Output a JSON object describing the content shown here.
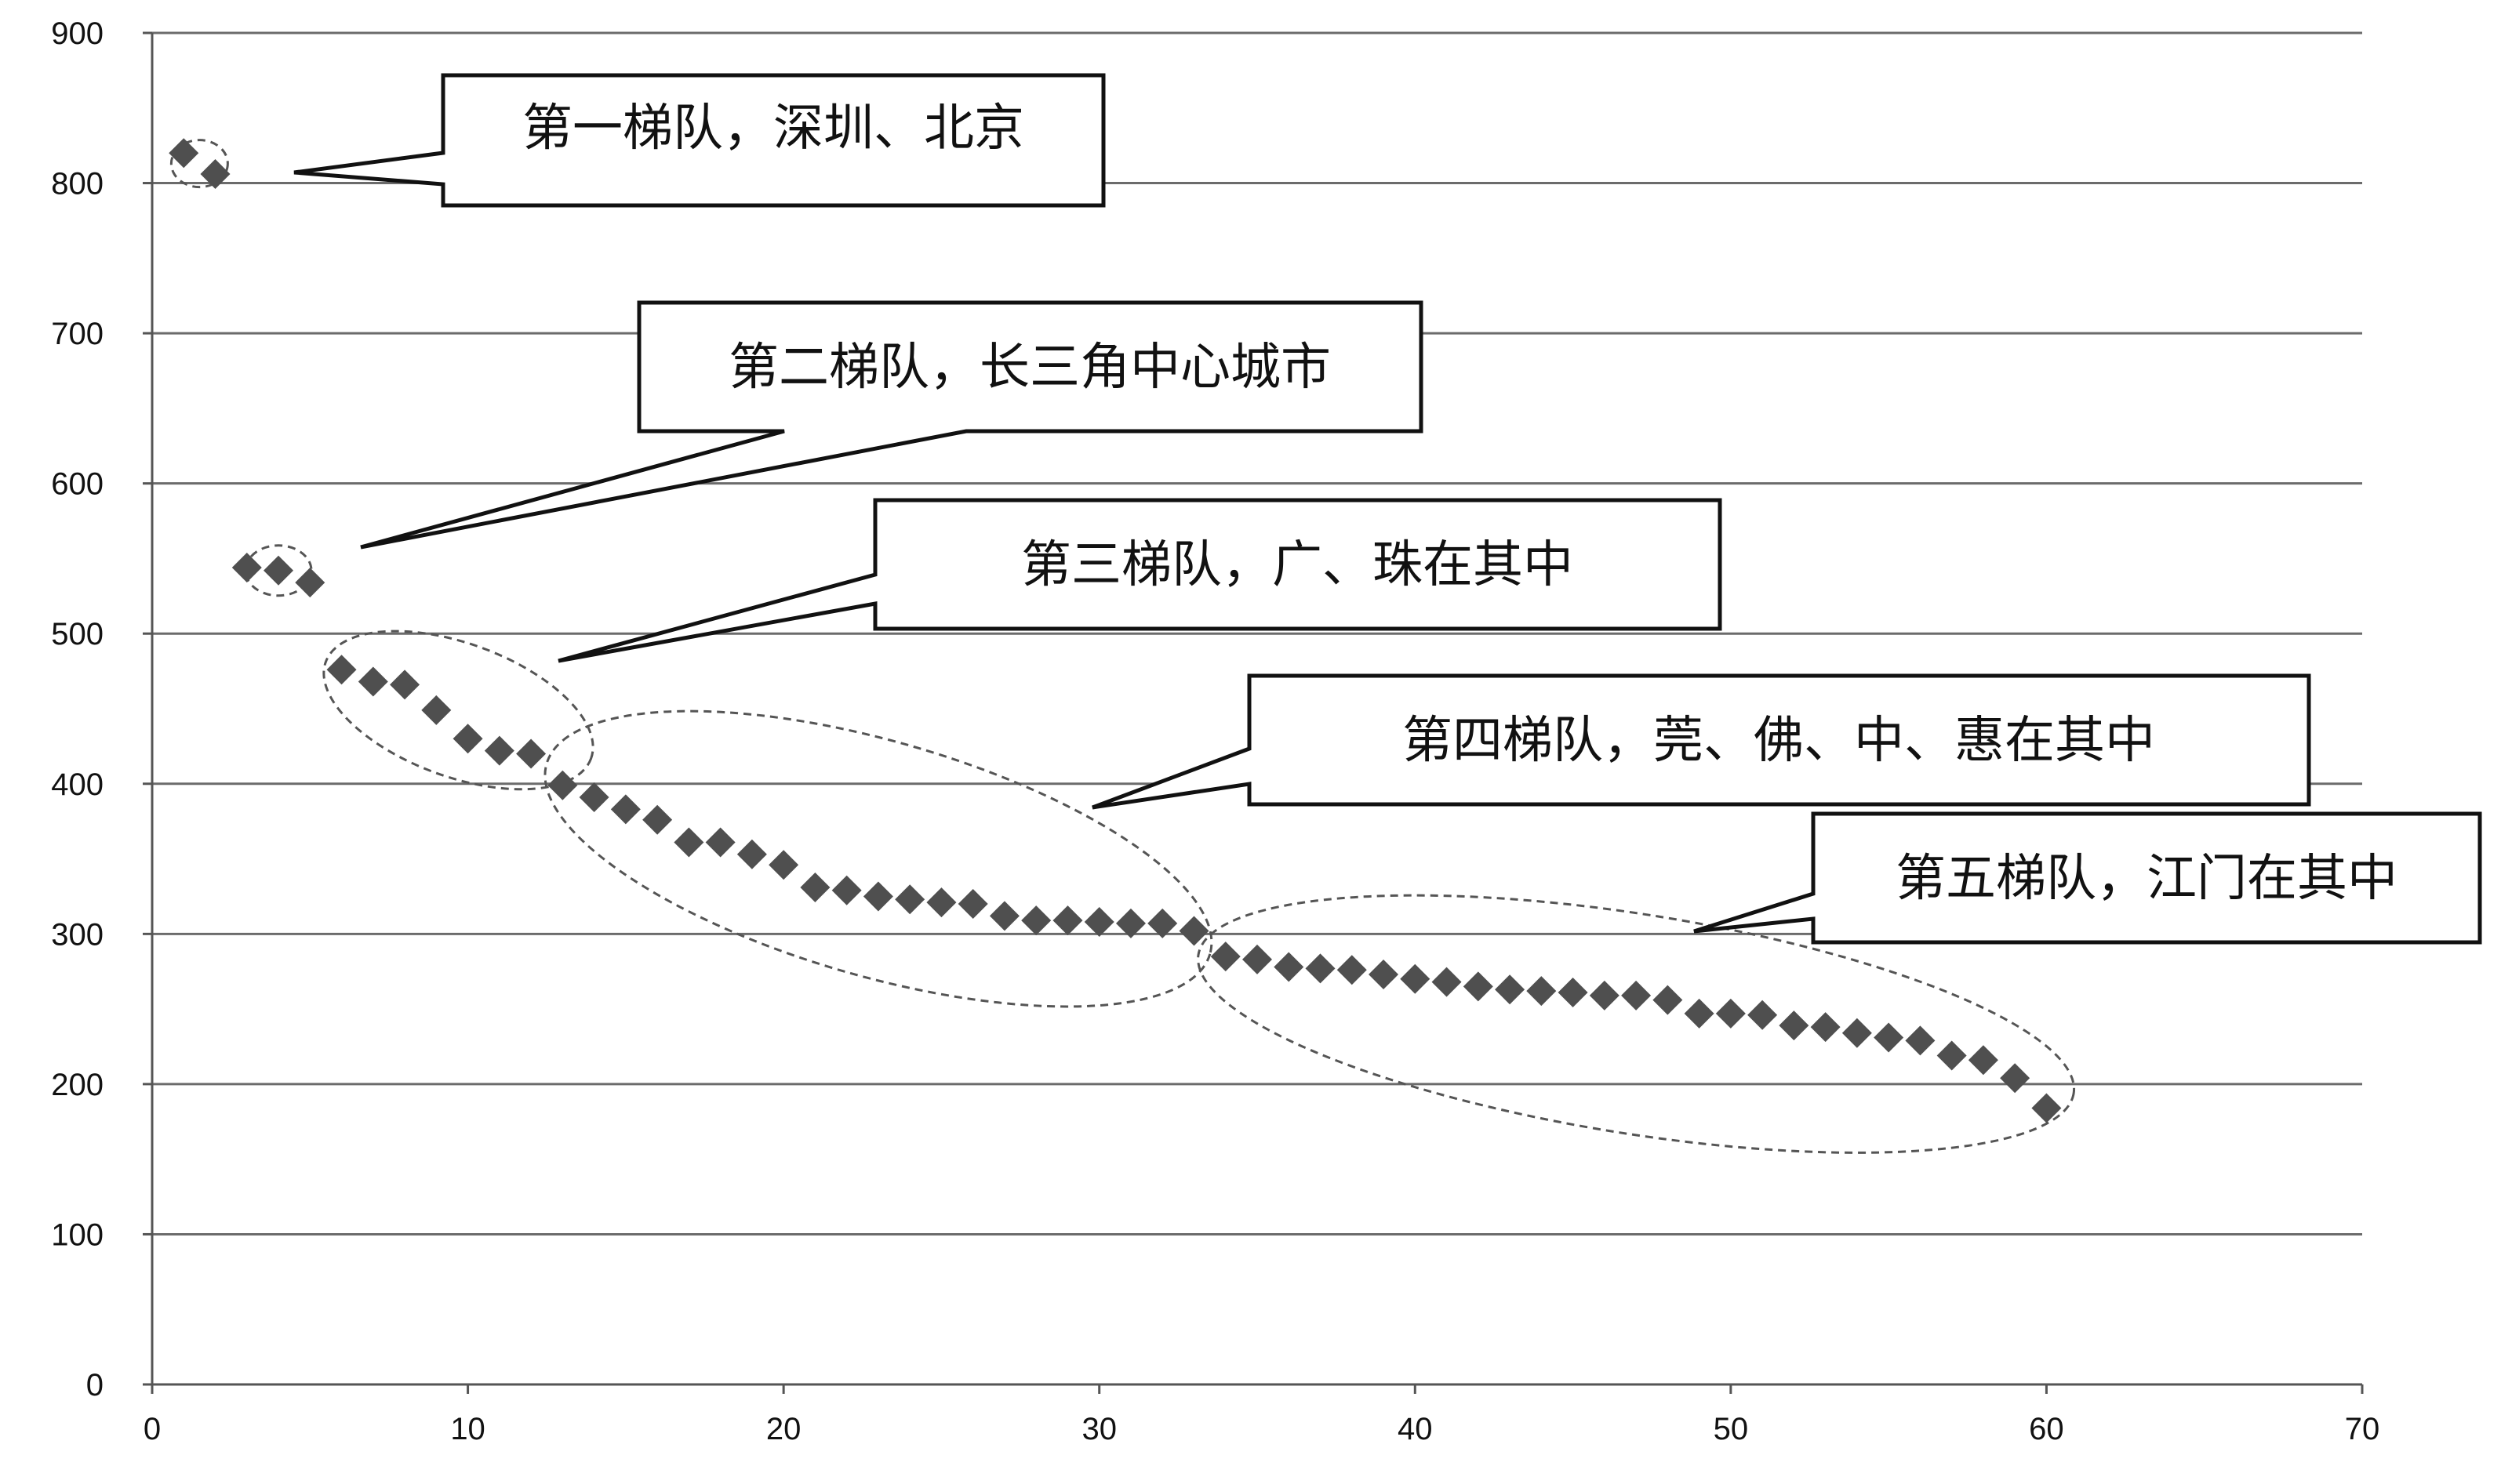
{
  "chart_data": {
    "type": "scatter",
    "title": "",
    "xlabel": "",
    "ylabel": "",
    "xlim": [
      0,
      70
    ],
    "ylim": [
      0,
      900
    ],
    "x_ticks": [
      "0",
      "10",
      "20",
      "30",
      "40",
      "50",
      "60",
      "70"
    ],
    "y_ticks": [
      "0",
      "100",
      "200",
      "300",
      "400",
      "500",
      "600",
      "700",
      "800",
      "900"
    ],
    "grid": "horizontal",
    "legend": "none",
    "marker": "diamond",
    "marker_color": "#4f4f4f",
    "series": [
      {
        "x": [
          1,
          2,
          3,
          4,
          5,
          6,
          7,
          8,
          9,
          10,
          11,
          12,
          13,
          14,
          15,
          16,
          17,
          18,
          19,
          20,
          21,
          22,
          23,
          24,
          25,
          26,
          27,
          28,
          29,
          30,
          31,
          32,
          33,
          34,
          35,
          36,
          37,
          38,
          39,
          40,
          41,
          42,
          43,
          44,
          45,
          46,
          47,
          48,
          49,
          50,
          51,
          52,
          53,
          54,
          55,
          56,
          57,
          58,
          59,
          60
        ],
        "y": [
          820,
          806,
          544,
          542,
          534,
          476,
          468,
          466,
          449,
          430,
          422,
          420,
          399,
          391,
          383,
          376,
          361,
          361,
          353,
          346,
          331,
          329,
          325,
          323,
          321,
          320,
          312,
          309,
          309,
          308,
          307,
          307,
          302,
          285,
          283,
          278,
          277,
          276,
          273,
          270,
          268,
          265,
          263,
          262,
          261,
          259,
          259,
          256,
          247,
          247,
          246,
          239,
          238,
          234,
          231,
          229,
          219,
          216,
          204,
          184
        ]
      }
    ],
    "annotations": [
      {
        "text": "第一梯队，深圳、北京"
      },
      {
        "text": "第二梯队，长三角中心城市"
      },
      {
        "text": "第三梯队，广、珠在其中"
      },
      {
        "text": "第四梯队，莞、佛、中、惠在其中"
      },
      {
        "text": "第五梯队，江门在其中"
      }
    ]
  }
}
